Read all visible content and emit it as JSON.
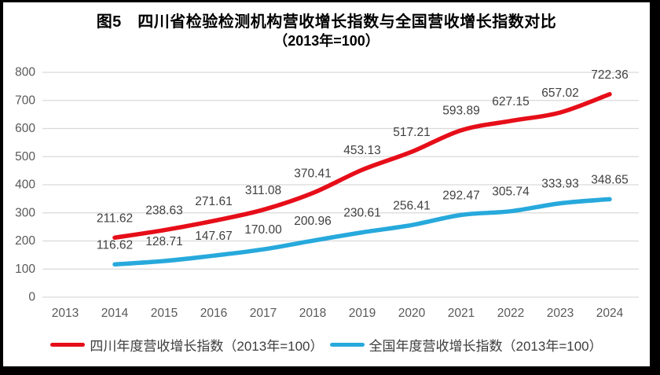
{
  "title": {
    "line1": "图5　四川省检验检测机构营收增长指数与全国营收增长指数对比",
    "line2": "（2013年=100）"
  },
  "chart_data": {
    "type": "line",
    "title": "图5 四川省检验检测机构营收增长指数与全国营收增长指数对比（2013年=100）",
    "x": [
      "2013",
      "2014",
      "2015",
      "2016",
      "2017",
      "2018",
      "2019",
      "2020",
      "2021",
      "2022",
      "2023",
      "2024"
    ],
    "y_ticks": [
      "0",
      "100",
      "200",
      "300",
      "400",
      "500",
      "600",
      "700",
      "800"
    ],
    "ylim": [
      0,
      800
    ],
    "ytick_step": 100,
    "grid": true,
    "legend_position": "bottom",
    "data_labels": true,
    "series": [
      {
        "name": "四川年度营收增长指数（2013年=100）",
        "color": "#e60e19",
        "first_x": "2014",
        "values": [
          211.62,
          238.63,
          271.61,
          311.08,
          370.41,
          453.13,
          517.21,
          593.89,
          627.15,
          657.02,
          722.36
        ]
      },
      {
        "name": "全国年度营收增长指数（2013年=100）",
        "color": "#27a9dc",
        "first_x": "2014",
        "values": [
          116.62,
          128.71,
          147.67,
          170.0,
          200.96,
          230.61,
          256.41,
          292.47,
          305.74,
          333.93,
          348.65
        ]
      }
    ]
  },
  "colors": {
    "background": "#ffffff",
    "frame": "#000000",
    "grid": "#d9d9d9",
    "axis_text": "#595959",
    "data_label_text": "#404040",
    "sichuan_red": "#e60e19",
    "national_blue": "#27a9dc"
  }
}
